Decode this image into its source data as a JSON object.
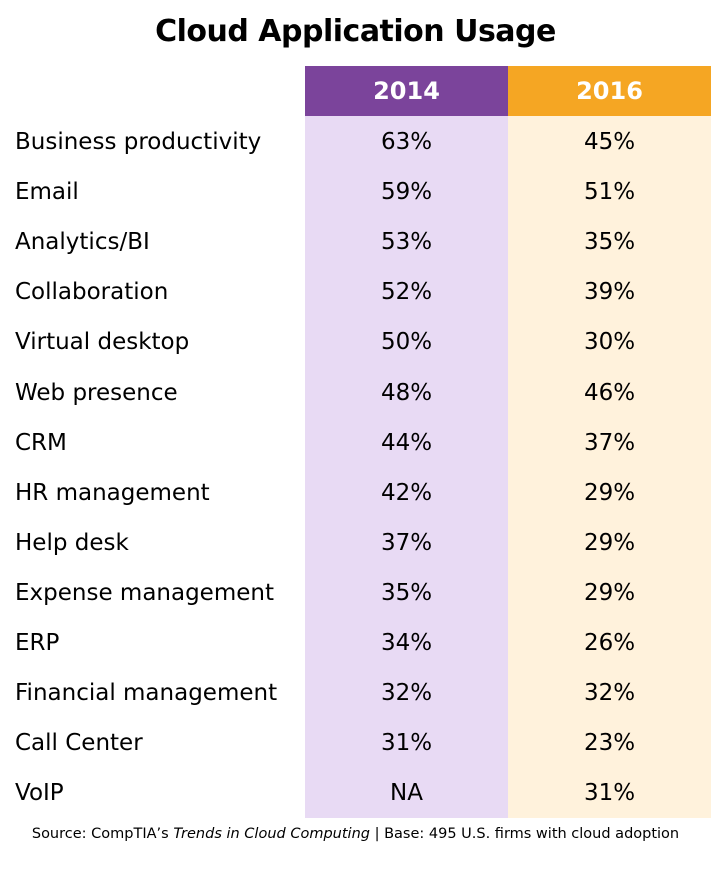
{
  "chart_data": {
    "type": "table",
    "title": "Cloud Application Usage",
    "columns": [
      "2014",
      "2016"
    ],
    "rows": [
      {
        "label": "Business productivity",
        "v2014": "63%",
        "v2016": "45%"
      },
      {
        "label": "Email",
        "v2014": "59%",
        "v2016": "51%"
      },
      {
        "label": "Analytics/BI",
        "v2014": "53%",
        "v2016": "35%"
      },
      {
        "label": "Collaboration",
        "v2014": "52%",
        "v2016": "39%"
      },
      {
        "label": "Virtual desktop",
        "v2014": "50%",
        "v2016": "30%"
      },
      {
        "label": "Web presence",
        "v2014": "48%",
        "v2016": "46%"
      },
      {
        "label": "CRM",
        "v2014": "44%",
        "v2016": "37%"
      },
      {
        "label": "HR management",
        "v2014": "42%",
        "v2016": "29%"
      },
      {
        "label": "Help desk",
        "v2014": "37%",
        "v2016": "29%"
      },
      {
        "label": "Expense management",
        "v2014": "35%",
        "v2016": "29%"
      },
      {
        "label": "ERP",
        "v2014": "34%",
        "v2016": "26%"
      },
      {
        "label": "Financial management",
        "v2014": "32%",
        "v2016": "32%"
      },
      {
        "label": "Call Center",
        "v2014": "31%",
        "v2016": "23%"
      },
      {
        "label": "VoIP",
        "v2014": "NA",
        "v2016": "31%"
      }
    ],
    "colors": {
      "header_2014": "#7b449b",
      "header_2016": "#f5a623",
      "bg_2014": "#e8daf4",
      "bg_2016": "#fff2dc"
    }
  },
  "source": {
    "prefix": "Source: CompTIA’s ",
    "italic": "Trends in Cloud Computing",
    "suffix": " | Base: 495 U.S. firms with cloud adoption"
  }
}
